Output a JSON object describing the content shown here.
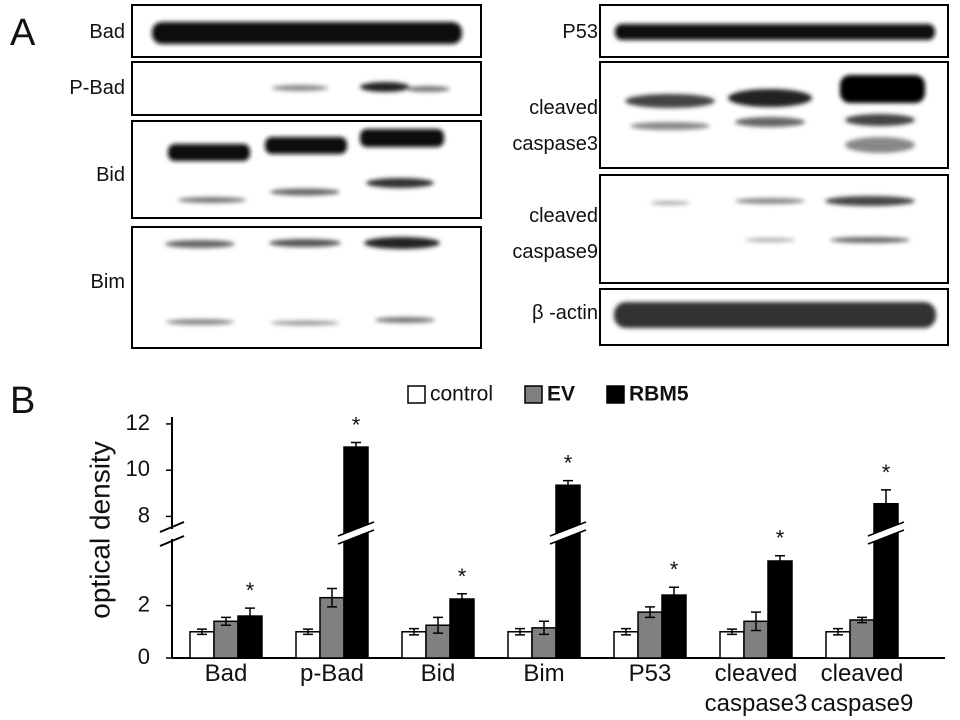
{
  "panel_a": {
    "label": "A",
    "left_blots": [
      "Bad",
      "P-Bad",
      "Bid",
      "Bim"
    ],
    "right_blots": [
      "P53",
      "cleaved\ncaspase3",
      "cleaved\ncaspase9",
      "β -actin"
    ]
  },
  "chart_data": {
    "type": "bar",
    "panel_label": "B",
    "ylabel": "optical density",
    "categories": [
      "Bad",
      "p-Bad",
      "Bid",
      "Bim",
      "P53",
      "cleaved\ncaspase3",
      "cleaved\ncaspase9"
    ],
    "series": [
      {
        "name": "control",
        "color": "#ffffff",
        "values": [
          1,
          1,
          1,
          1,
          1,
          1,
          1
        ],
        "errors": [
          0.1,
          0.1,
          0.12,
          0.12,
          0.12,
          0.1,
          0.12
        ]
      },
      {
        "name": "EV",
        "color": "#808080",
        "values": [
          1.4,
          2.3,
          1.25,
          1.15,
          1.75,
          1.4,
          1.45
        ],
        "errors": [
          0.15,
          0.35,
          0.3,
          0.25,
          0.2,
          0.35,
          0.1
        ]
      },
      {
        "name": "RBM5",
        "color": "#000000",
        "values": [
          1.6,
          11.0,
          2.25,
          9.35,
          2.4,
          3.7,
          8.55
        ],
        "errors": [
          0.3,
          0.2,
          0.2,
          0.2,
          0.3,
          0.2,
          0.6
        ]
      }
    ],
    "annotations": [
      "*",
      "*",
      "*",
      "*",
      "*",
      "*",
      "*"
    ],
    "ylim": [
      0,
      12.3
    ],
    "y_break": [
      4.5,
      7.5
    ],
    "yticks": [
      0,
      2,
      8,
      10,
      12
    ],
    "legend": "top"
  }
}
